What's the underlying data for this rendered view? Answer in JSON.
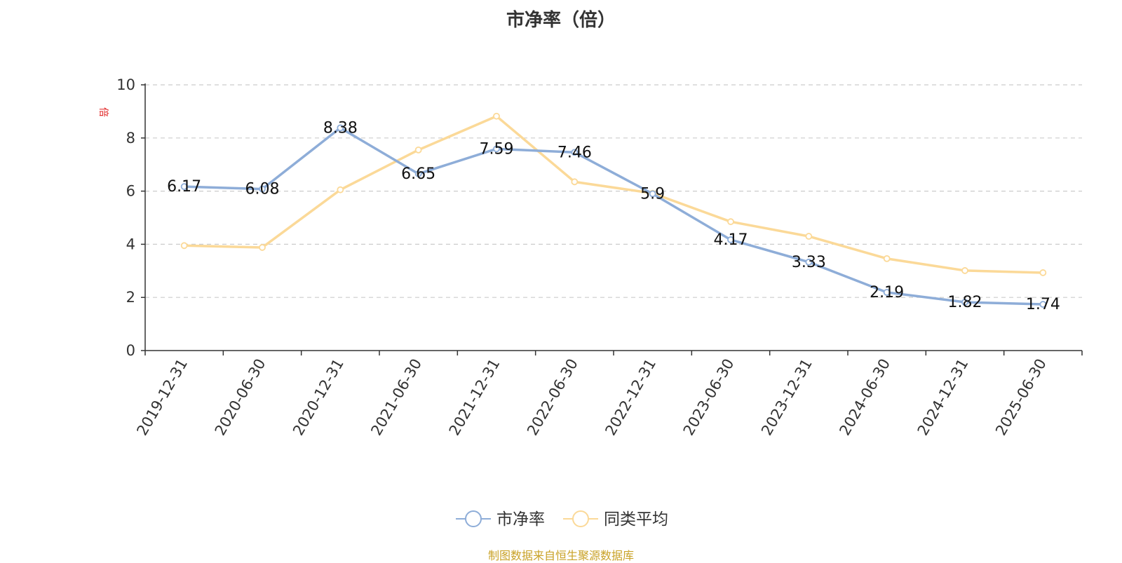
{
  "chart_data": {
    "type": "line",
    "title": "市净率（倍）",
    "ylabel": "倍",
    "xlabel": "",
    "ylim": [
      0,
      10
    ],
    "yticks": [
      0,
      2,
      4,
      6,
      8,
      10
    ],
    "grid": true,
    "legend_position": "bottom",
    "categories": [
      "2019-12-31",
      "2020-06-30",
      "2020-12-31",
      "2021-06-30",
      "2021-12-31",
      "2022-06-30",
      "2022-12-31",
      "2023-06-30",
      "2023-12-31",
      "2024-06-30",
      "2024-12-31",
      "2025-06-30"
    ],
    "series": [
      {
        "name": "市净率",
        "color": "#8eadd8",
        "values": [
          6.17,
          6.08,
          8.38,
          6.65,
          7.59,
          7.46,
          5.9,
          4.17,
          3.33,
          2.19,
          1.82,
          1.74
        ],
        "labels": [
          "6.17",
          "6.08",
          "8.38",
          "6.65",
          "7.59",
          "7.46",
          "5.9",
          "4.17",
          "3.33",
          "2.19",
          "1.82",
          "1.74"
        ]
      },
      {
        "name": "同类平均",
        "color": "#fbd998",
        "values": [
          3.95,
          3.88,
          6.05,
          7.55,
          8.82,
          6.35,
          5.92,
          4.85,
          4.3,
          3.46,
          3.01,
          2.93
        ]
      }
    ]
  },
  "source": "制图数据来自恒生聚源数据库"
}
